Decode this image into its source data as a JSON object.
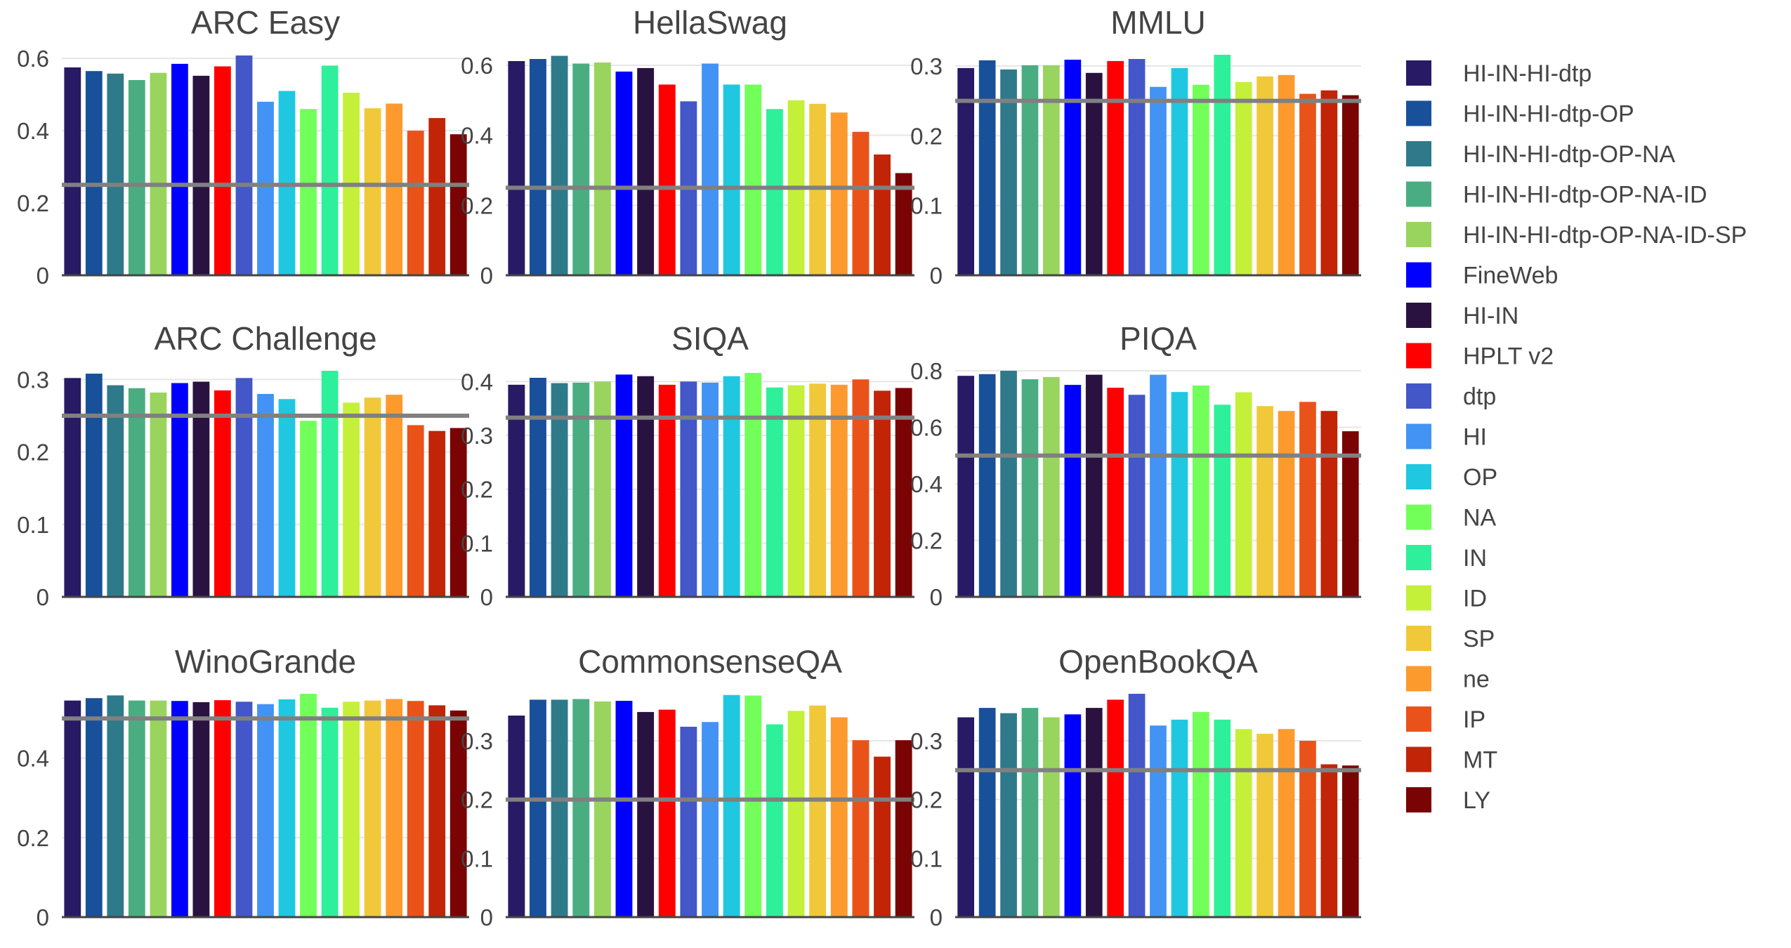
{
  "chart_data": {
    "type": "bar",
    "legend_placement": "right",
    "grid": true,
    "baseline_color": "#808080",
    "series": [
      {
        "name": "HI-IN-HI-dtp",
        "color": "#281a64"
      },
      {
        "name": "HI-IN-HI-dtp-OP",
        "color": "#18509a"
      },
      {
        "name": "HI-IN-HI-dtp-OP-NA",
        "color": "#2e7a8a"
      },
      {
        "name": "HI-IN-HI-dtp-OP-NA-ID",
        "color": "#4aad82"
      },
      {
        "name": "HI-IN-HI-dtp-OP-NA-ID-SP",
        "color": "#99d45e"
      },
      {
        "name": "FineWeb",
        "color": "#0000ff"
      },
      {
        "name": "HI-IN",
        "color": "#2a1240"
      },
      {
        "name": "HPLT v2",
        "color": "#ff0000"
      },
      {
        "name": "dtp",
        "color": "#4357c8"
      },
      {
        "name": "HI",
        "color": "#4393f5"
      },
      {
        "name": "OP",
        "color": "#1fc8e0"
      },
      {
        "name": "NA",
        "color": "#72ff5a"
      },
      {
        "name": "IN",
        "color": "#2ef09a"
      },
      {
        "name": "ID",
        "color": "#c4f03a"
      },
      {
        "name": "SP",
        "color": "#f0c83a"
      },
      {
        "name": "ne",
        "color": "#fd9a2e"
      },
      {
        "name": "IP",
        "color": "#e9531a"
      },
      {
        "name": "MT",
        "color": "#c22408"
      },
      {
        "name": "LY",
        "color": "#7a0403"
      }
    ],
    "panels": [
      {
        "title": "ARC Easy",
        "ylim": [
          0,
          0.61
        ],
        "yticks": [
          0,
          0.2,
          0.4,
          0.6
        ],
        "tick_labels": [
          "0",
          "0.2",
          "0.4",
          "0.6"
        ],
        "baseline": 0.25,
        "values": [
          0.575,
          0.565,
          0.558,
          0.54,
          0.56,
          0.585,
          0.552,
          0.578,
          0.608,
          0.48,
          0.51,
          0.46,
          0.58,
          0.505,
          0.462,
          0.475,
          0.4,
          0.435,
          0.39
        ]
      },
      {
        "title": "HellaSwag",
        "ylim": [
          0,
          0.63
        ],
        "yticks": [
          0,
          0.2,
          0.4,
          0.6
        ],
        "tick_labels": [
          "0",
          "0.2",
          "0.4",
          "0.6"
        ],
        "baseline": 0.25,
        "values": [
          0.612,
          0.618,
          0.627,
          0.605,
          0.608,
          0.582,
          0.592,
          0.545,
          0.497,
          0.605,
          0.545,
          0.545,
          0.475,
          0.5,
          0.49,
          0.465,
          0.41,
          0.345,
          0.292
        ]
      },
      {
        "title": "MMLU",
        "ylim": [
          0,
          0.316
        ],
        "yticks": [
          0,
          0.1,
          0.2,
          0.3
        ],
        "tick_labels": [
          "0",
          "0.1",
          "0.2",
          "0.3"
        ],
        "baseline": 0.25,
        "values": [
          0.297,
          0.308,
          0.295,
          0.301,
          0.301,
          0.309,
          0.29,
          0.307,
          0.31,
          0.27,
          0.297,
          0.273,
          0.316,
          0.277,
          0.285,
          0.287,
          0.26,
          0.265,
          0.258
        ]
      },
      {
        "title": "ARC Challenge",
        "ylim": [
          0,
          0.312
        ],
        "yticks": [
          0,
          0.1,
          0.2,
          0.3
        ],
        "tick_labels": [
          "0",
          "0.1",
          "0.2",
          "0.3"
        ],
        "baseline": 0.25,
        "values": [
          0.302,
          0.308,
          0.292,
          0.288,
          0.282,
          0.295,
          0.297,
          0.285,
          0.302,
          0.28,
          0.273,
          0.243,
          0.312,
          0.268,
          0.275,
          0.279,
          0.237,
          0.229,
          0.233
        ]
      },
      {
        "title": "SIQA",
        "ylim": [
          0,
          0.42
        ],
        "yticks": [
          0,
          0.1,
          0.2,
          0.3,
          0.4
        ],
        "tick_labels": [
          "0",
          "0.1",
          "0.2",
          "0.3",
          "0.4"
        ],
        "baseline": 0.333,
        "values": [
          0.394,
          0.407,
          0.397,
          0.398,
          0.4,
          0.413,
          0.41,
          0.394,
          0.4,
          0.398,
          0.41,
          0.416,
          0.389,
          0.393,
          0.396,
          0.394,
          0.404,
          0.383,
          0.388
        ]
      },
      {
        "title": "PIQA",
        "ylim": [
          0,
          0.8
        ],
        "yticks": [
          0,
          0.2,
          0.4,
          0.6,
          0.8
        ],
        "tick_labels": [
          "0",
          "0.2",
          "0.4",
          "0.6",
          "0.8"
        ],
        "baseline": 0.5,
        "values": [
          0.782,
          0.788,
          0.8,
          0.77,
          0.778,
          0.75,
          0.786,
          0.74,
          0.715,
          0.786,
          0.725,
          0.748,
          0.68,
          0.724,
          0.675,
          0.658,
          0.69,
          0.658,
          0.586
        ]
      },
      {
        "title": "WinoGrande",
        "ylim": [
          0,
          0.562
        ],
        "yticks": [
          0,
          0.2,
          0.4
        ],
        "tick_labels": [
          "0",
          "0.2",
          "0.4"
        ],
        "baseline": 0.5,
        "values": [
          0.545,
          0.551,
          0.558,
          0.545,
          0.545,
          0.544,
          0.541,
          0.546,
          0.542,
          0.536,
          0.548,
          0.562,
          0.527,
          0.542,
          0.545,
          0.549,
          0.544,
          0.533,
          0.52
        ]
      },
      {
        "title": "CommonsenseQA",
        "ylim": [
          0,
          0.38
        ],
        "yticks": [
          0,
          0.1,
          0.2,
          0.3
        ],
        "tick_labels": [
          "0",
          "0.1",
          "0.2",
          "0.3"
        ],
        "baseline": 0.2,
        "values": [
          0.343,
          0.37,
          0.37,
          0.371,
          0.367,
          0.368,
          0.349,
          0.353,
          0.324,
          0.332,
          0.378,
          0.377,
          0.328,
          0.351,
          0.36,
          0.34,
          0.301,
          0.273,
          0.301
        ]
      },
      {
        "title": "OpenBookQA",
        "ylim": [
          0,
          0.38
        ],
        "yticks": [
          0,
          0.1,
          0.2,
          0.3
        ],
        "tick_labels": [
          "0",
          "0.1",
          "0.2",
          "0.3"
        ],
        "baseline": 0.25,
        "values": [
          0.34,
          0.356,
          0.347,
          0.356,
          0.34,
          0.345,
          0.356,
          0.37,
          0.38,
          0.326,
          0.336,
          0.349,
          0.336,
          0.32,
          0.312,
          0.32,
          0.3,
          0.26,
          0.258
        ]
      }
    ]
  }
}
